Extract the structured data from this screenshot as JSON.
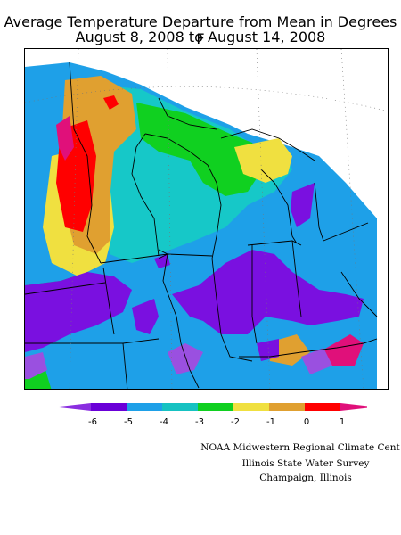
{
  "title": {
    "line1": "Average Temperature Departure from Mean in Degrees F",
    "line2": "August 8, 2008 to August 14, 2008"
  },
  "legend": {
    "unit": "Degrees F",
    "bins": [
      {
        "color": "#8a2ee0",
        "label": ""
      },
      {
        "color": "#6a00d8",
        "label": "-6"
      },
      {
        "color": "#1ea0e8",
        "label": "-5"
      },
      {
        "color": "#16c2c2",
        "label": "-4"
      },
      {
        "color": "#10d020",
        "label": "-3"
      },
      {
        "color": "#f0e040",
        "label": "-2"
      },
      {
        "color": "#e0a030",
        "label": "-1"
      },
      {
        "color": "#ff0000",
        "label": "0"
      },
      {
        "color": "#e0107a",
        "label": "1"
      }
    ]
  },
  "map": {
    "region": "Midwest United States",
    "variable": "Average temperature departure from mean",
    "colors": {
      "purple": "#7a10e0",
      "blue": "#1ea0e8",
      "teal": "#16c8c8",
      "green": "#10d020",
      "yellow": "#f0e040",
      "orange": "#e0a030",
      "red": "#ff0000",
      "magenta": "#e0107a",
      "violet": "#9a50e0"
    }
  },
  "credits": {
    "line1": "NOAA Midwestern Regional Climate Cent",
    "line2": "Illinois State Water Survey",
    "line3": "Champaign, Illinois"
  }
}
